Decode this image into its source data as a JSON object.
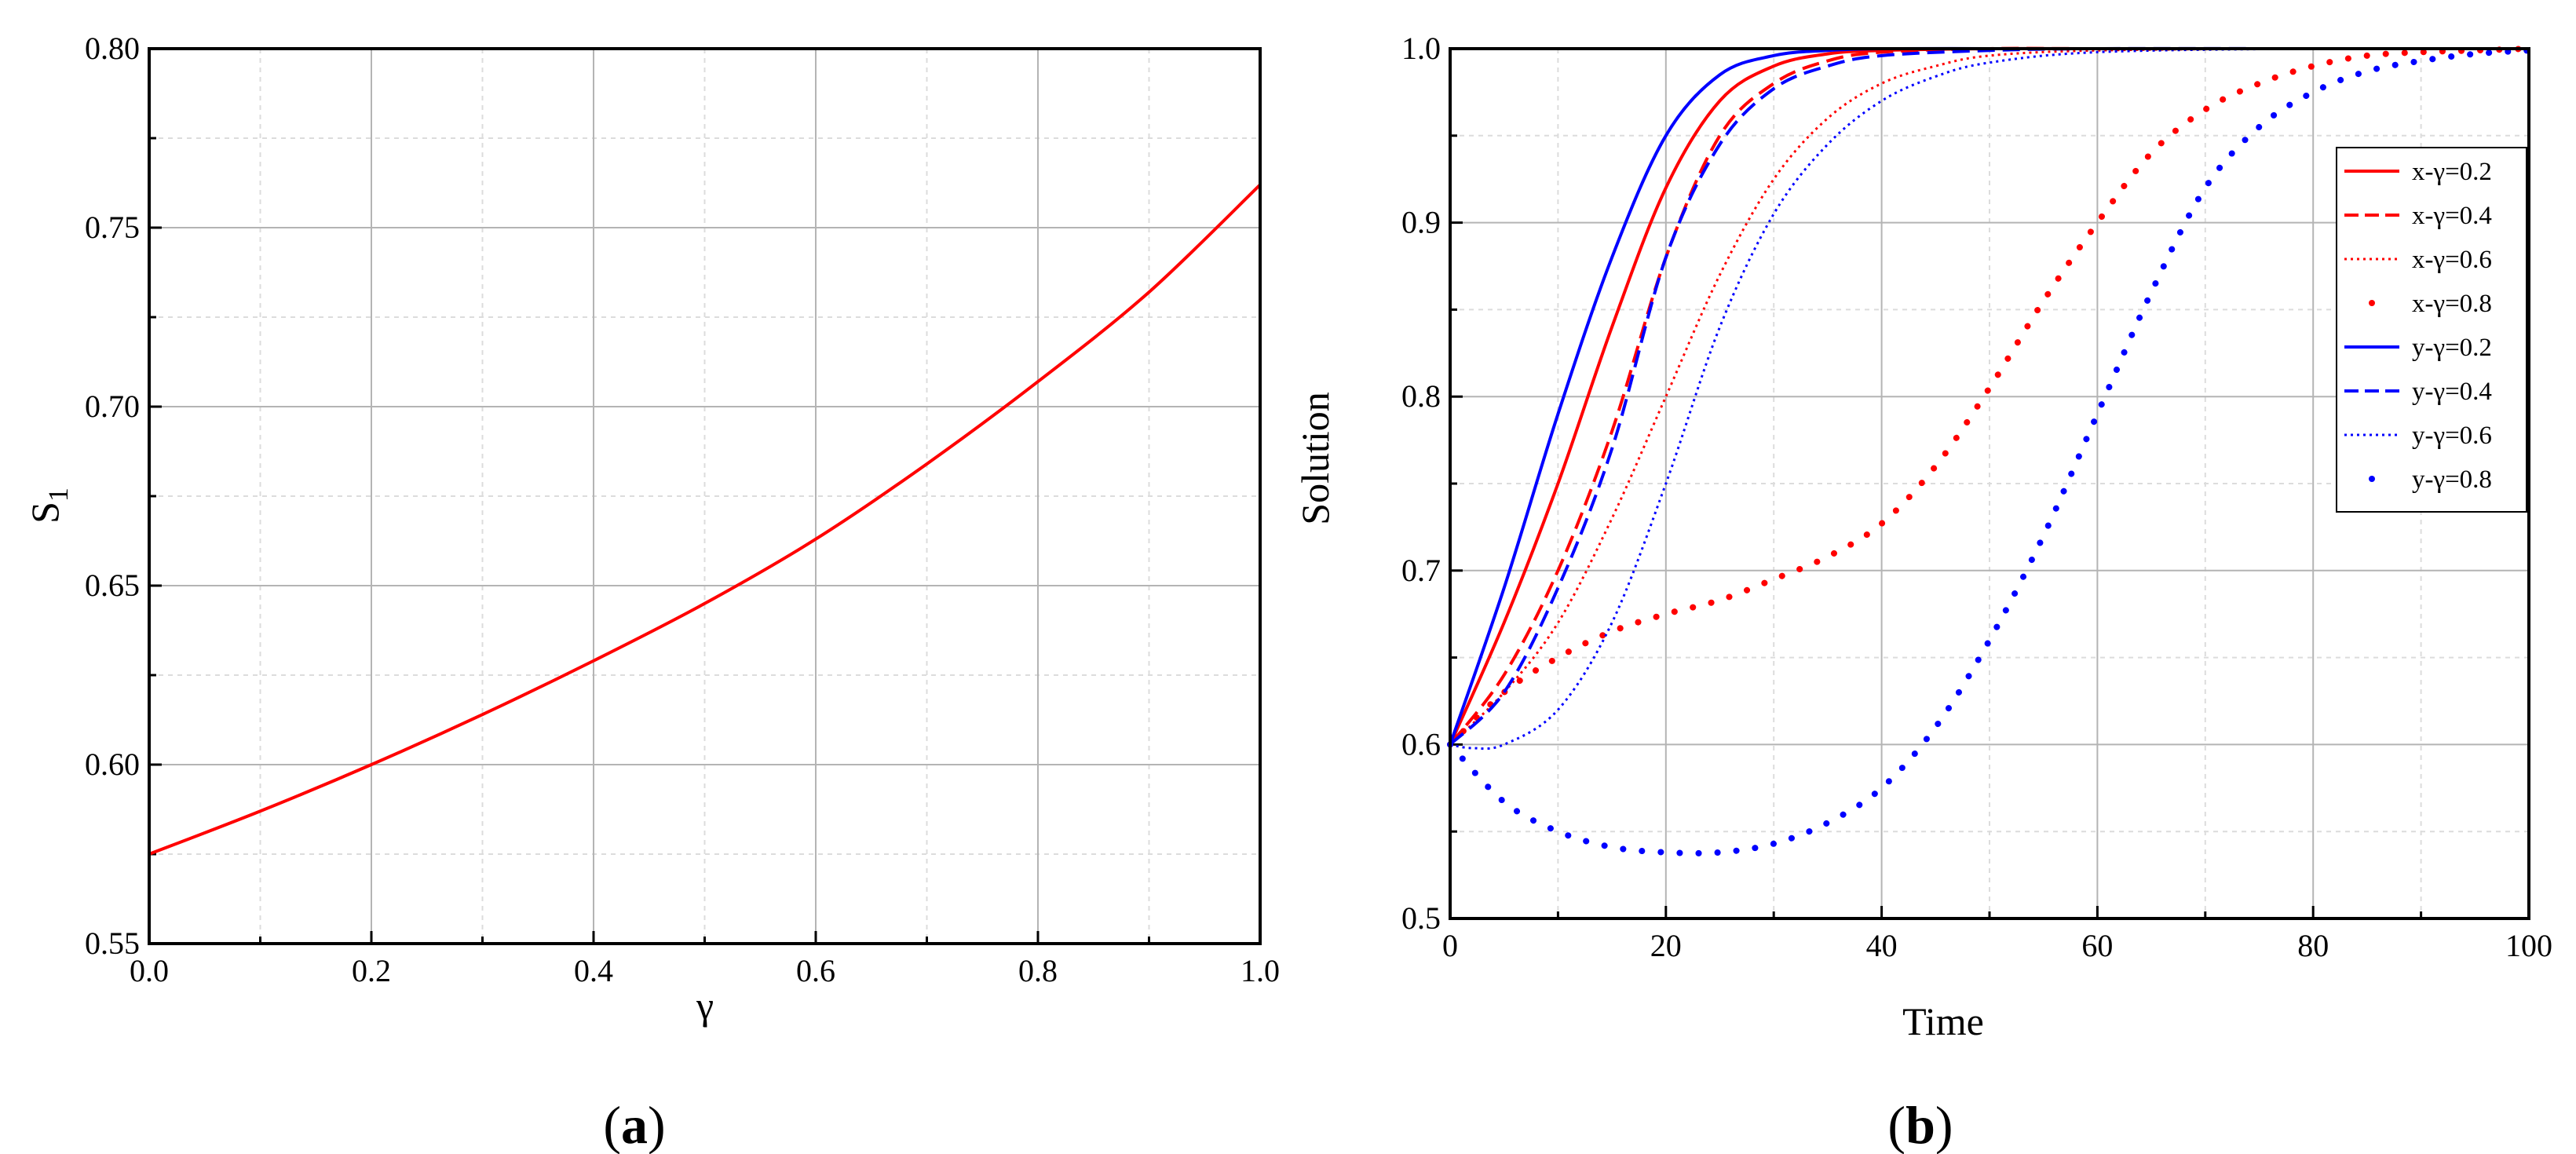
{
  "chart_data": [
    {
      "type": "line",
      "caption": "(a)",
      "caption_open": "(",
      "caption_letter": "a",
      "caption_close": ")",
      "xlabel": "γ",
      "ylabel": "S",
      "ylabel_sub": "1",
      "xlim": [
        0.0,
        1.0
      ],
      "ylim": [
        0.55,
        0.8
      ],
      "xticks": [
        "0.0",
        "0.2",
        "0.4",
        "0.6",
        "0.8",
        "1.0"
      ],
      "yticks": [
        "0.55",
        "0.60",
        "0.65",
        "0.70",
        "0.75",
        "0.80"
      ],
      "grid": true,
      "series": [
        {
          "color": "#ff0000",
          "style": "solid",
          "x": [
            0.0,
            0.1,
            0.2,
            0.3,
            0.4,
            0.5,
            0.6,
            0.7,
            0.8,
            0.9,
            1.0
          ],
          "values": [
            0.575,
            0.587,
            0.6,
            0.614,
            0.629,
            0.645,
            0.663,
            0.684,
            0.707,
            0.732,
            0.762
          ]
        }
      ]
    },
    {
      "type": "line",
      "caption": "(b)",
      "caption_open": "(",
      "caption_letter": "b",
      "caption_close": ")",
      "xlabel": "Time",
      "ylabel": "Solution",
      "xlim": [
        0,
        100
      ],
      "ylim": [
        0.5,
        1.0
      ],
      "xticks": [
        "0",
        "20",
        "40",
        "60",
        "80",
        "100"
      ],
      "yticks": [
        "0.5",
        "0.6",
        "0.7",
        "0.8",
        "0.9",
        "1.0"
      ],
      "grid": true,
      "legend_position": "right",
      "series": [
        {
          "name": "x-γ=0.2",
          "color": "#ff0000",
          "style": "solid",
          "x": [
            0,
            5,
            10,
            15,
            20,
            25,
            30,
            35,
            40,
            50,
            60,
            80,
            100
          ],
          "values": [
            0.6,
            0.67,
            0.75,
            0.84,
            0.92,
            0.97,
            0.99,
            0.997,
            0.999,
            1.0,
            1.0,
            1.0,
            1.0
          ]
        },
        {
          "name": "x-γ=0.4",
          "color": "#ff0000",
          "style": "dashed",
          "x": [
            0,
            5,
            10,
            15,
            20,
            25,
            30,
            35,
            40,
            50,
            60,
            80,
            100
          ],
          "values": [
            0.6,
            0.64,
            0.7,
            0.78,
            0.88,
            0.95,
            0.98,
            0.993,
            0.998,
            1.0,
            1.0,
            1.0,
            1.0
          ]
        },
        {
          "name": "x-γ=0.6",
          "color": "#ff0000",
          "style": "dotted",
          "x": [
            0,
            5,
            10,
            15,
            20,
            25,
            30,
            35,
            40,
            45,
            50,
            60,
            80,
            100
          ],
          "values": [
            0.6,
            0.63,
            0.67,
            0.73,
            0.8,
            0.87,
            0.925,
            0.96,
            0.98,
            0.99,
            0.996,
            0.999,
            1.0,
            1.0
          ]
        },
        {
          "name": "x-γ=0.8",
          "color": "#ff0000",
          "style": "sparse",
          "x": [
            0,
            5,
            10,
            15,
            20,
            25,
            30,
            35,
            40,
            45,
            50,
            55,
            60,
            65,
            70,
            75,
            80,
            85,
            90,
            95,
            100
          ],
          "values": [
            0.6,
            0.63,
            0.65,
            0.665,
            0.675,
            0.683,
            0.695,
            0.708,
            0.727,
            0.76,
            0.805,
            0.855,
            0.9,
            0.94,
            0.965,
            0.98,
            0.99,
            0.996,
            0.998,
            0.999,
            1.0
          ]
        },
        {
          "name": "y-γ=0.2",
          "color": "#0000ff",
          "style": "solid",
          "x": [
            0,
            5,
            10,
            15,
            20,
            25,
            30,
            35,
            40,
            50,
            60,
            80,
            100
          ],
          "values": [
            0.6,
            0.69,
            0.79,
            0.88,
            0.95,
            0.985,
            0.996,
            0.999,
            1.0,
            1.0,
            1.0,
            1.0,
            1.0
          ]
        },
        {
          "name": "y-γ=0.4",
          "color": "#0000ff",
          "style": "dashed",
          "x": [
            0,
            5,
            10,
            15,
            20,
            25,
            30,
            35,
            40,
            50,
            60,
            80,
            100
          ],
          "values": [
            0.6,
            0.63,
            0.69,
            0.77,
            0.88,
            0.945,
            0.977,
            0.99,
            0.996,
            0.999,
            1.0,
            1.0,
            1.0
          ]
        },
        {
          "name": "y-γ=0.6",
          "color": "#0000ff",
          "style": "dotted",
          "x": [
            0,
            2,
            5,
            10,
            15,
            20,
            25,
            30,
            35,
            40,
            45,
            50,
            60,
            80,
            100
          ],
          "values": [
            0.6,
            0.598,
            0.6,
            0.62,
            0.67,
            0.75,
            0.84,
            0.905,
            0.945,
            0.97,
            0.984,
            0.992,
            0.998,
            1.0,
            1.0
          ]
        },
        {
          "name": "y-γ=0.8",
          "color": "#0000ff",
          "style": "sparse",
          "x": [
            0,
            5,
            10,
            15,
            20,
            25,
            30,
            35,
            40,
            45,
            50,
            55,
            60,
            65,
            70,
            75,
            80,
            85,
            90,
            95,
            100
          ],
          "values": [
            0.6,
            0.567,
            0.55,
            0.541,
            0.538,
            0.538,
            0.543,
            0.555,
            0.575,
            0.61,
            0.66,
            0.72,
            0.79,
            0.86,
            0.92,
            0.955,
            0.975,
            0.987,
            0.993,
            0.997,
            0.999
          ]
        }
      ]
    }
  ]
}
